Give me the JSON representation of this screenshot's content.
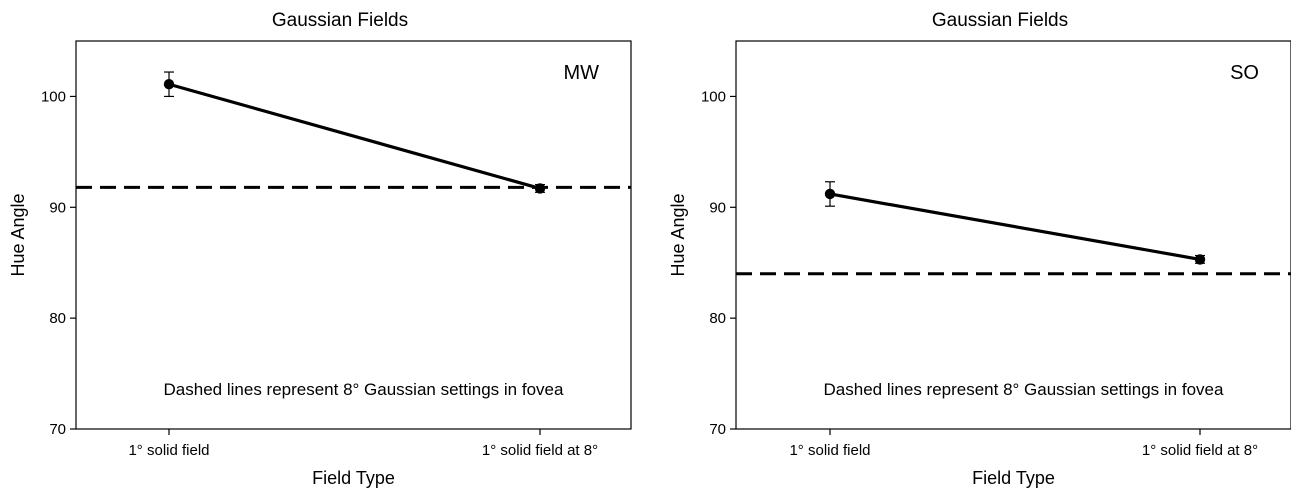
{
  "chart_data": [
    {
      "type": "line",
      "title": "Gaussian Fields",
      "panel_label": "MW",
      "xlabel": "Field Type",
      "ylabel": "Hue Angle",
      "categories": [
        "1° solid field",
        "1° solid field at 8°"
      ],
      "series": [
        {
          "values": [
            101.1,
            91.7
          ],
          "errors": [
            1.1,
            0.35
          ]
        }
      ],
      "reference_line": {
        "y": 91.8,
        "style": "dashed"
      },
      "ylim": [
        70,
        105
      ],
      "yticks": [
        70,
        80,
        90,
        100
      ],
      "annotation": "Dashed lines represent 8° Gaussian settings in fovea",
      "grid": false
    },
    {
      "type": "line",
      "title": "Gaussian Fields",
      "panel_label": "SO",
      "xlabel": "Field Type",
      "ylabel": "Hue Angle",
      "categories": [
        "1° solid field",
        "1° solid field at 8°"
      ],
      "series": [
        {
          "values": [
            91.2,
            85.3
          ],
          "errors": [
            1.1,
            0.35
          ]
        }
      ],
      "reference_line": {
        "y": 84.0,
        "style": "dashed"
      },
      "ylim": [
        70,
        105
      ],
      "yticks": [
        70,
        80,
        90,
        100
      ],
      "annotation": "Dashed lines represent 8° Gaussian settings in fovea",
      "grid": false
    }
  ]
}
